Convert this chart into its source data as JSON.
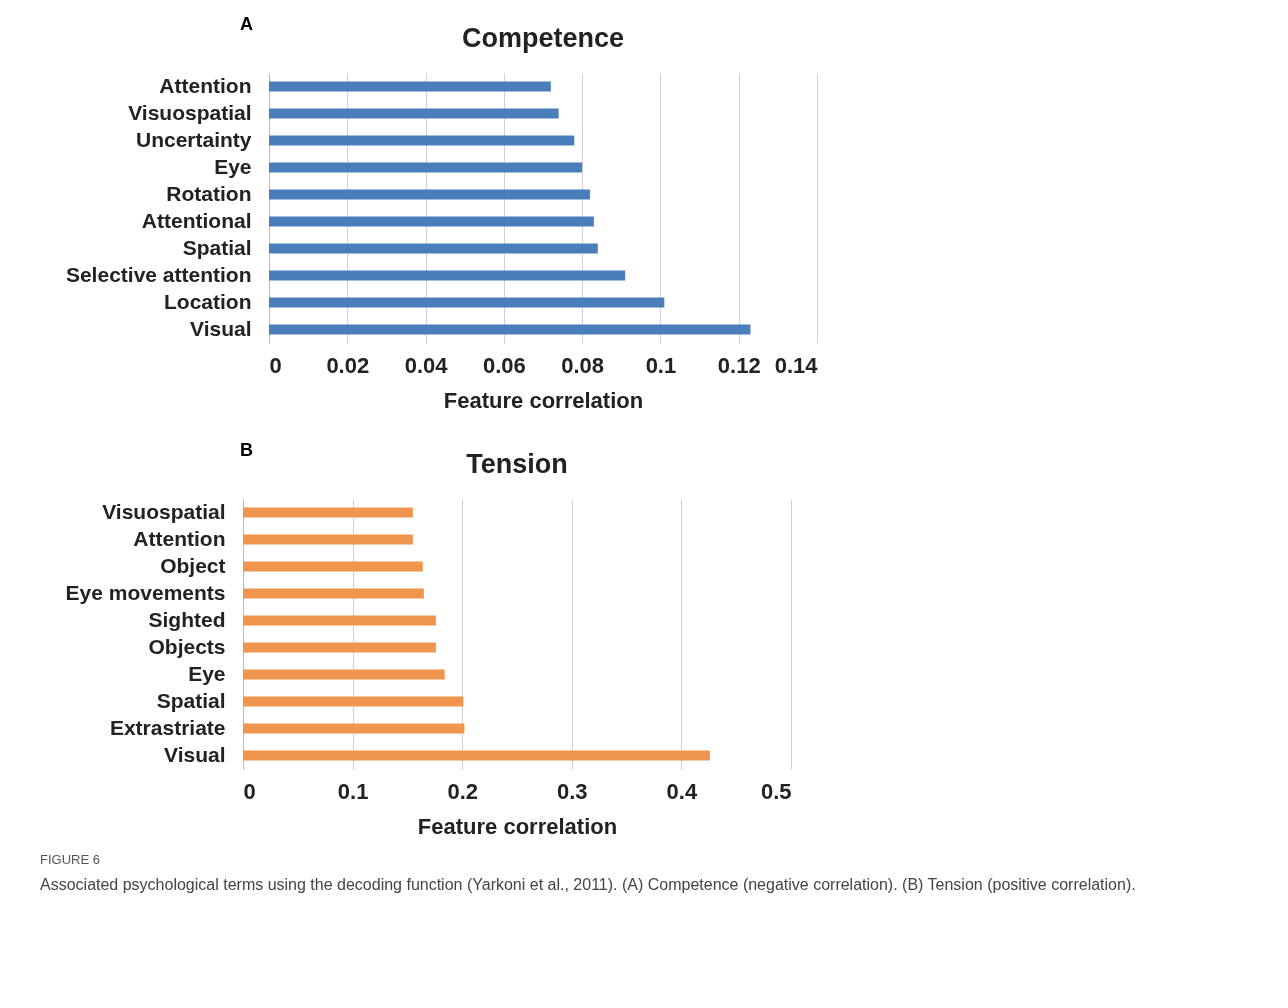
{
  "chart_data": [
    {
      "type": "bar",
      "orientation": "horizontal",
      "title": "Competence",
      "xlabel": "Feature correlation",
      "categories": [
        "Attention",
        "Visuospatial",
        "Uncertainty",
        "Eye",
        "Rotation",
        "Attentional",
        "Spatial",
        "Selective attention",
        "Location",
        "Visual"
      ],
      "values": [
        0.072,
        0.074,
        0.078,
        0.08,
        0.082,
        0.083,
        0.084,
        0.091,
        0.101,
        0.123
      ],
      "color": "#4a7ebb",
      "xlim": [
        0,
        0.14
      ],
      "xticks": [
        0,
        0.02,
        0.04,
        0.06,
        0.08,
        0.1,
        0.12,
        0.14
      ],
      "grid": "x",
      "annotations": [
        "A"
      ]
    },
    {
      "type": "bar",
      "orientation": "horizontal",
      "title": "Tension",
      "xlabel": "Feature correlation",
      "categories": [
        "Visuospatial",
        "Attention",
        "Object",
        "Eye movements",
        "Sighted",
        "Objects",
        "Eye",
        "Spatial",
        "Extrastriate",
        "Visual"
      ],
      "values": [
        0.155,
        0.155,
        0.164,
        0.165,
        0.176,
        0.176,
        0.184,
        0.201,
        0.202,
        0.426
      ],
      "color": "#f0954e",
      "xlim": [
        0,
        0.5
      ],
      "xticks": [
        0,
        0.1,
        0.2,
        0.3,
        0.4,
        0.5
      ],
      "grid": "x",
      "annotations": [
        "B",
        "FIGURE 6",
        "Associated psychological terms using the decoding function (Yarkoni et al., 2011). (A) Competence (negative correlation). (B) Tension (positive correlation)."
      ]
    }
  ]
}
